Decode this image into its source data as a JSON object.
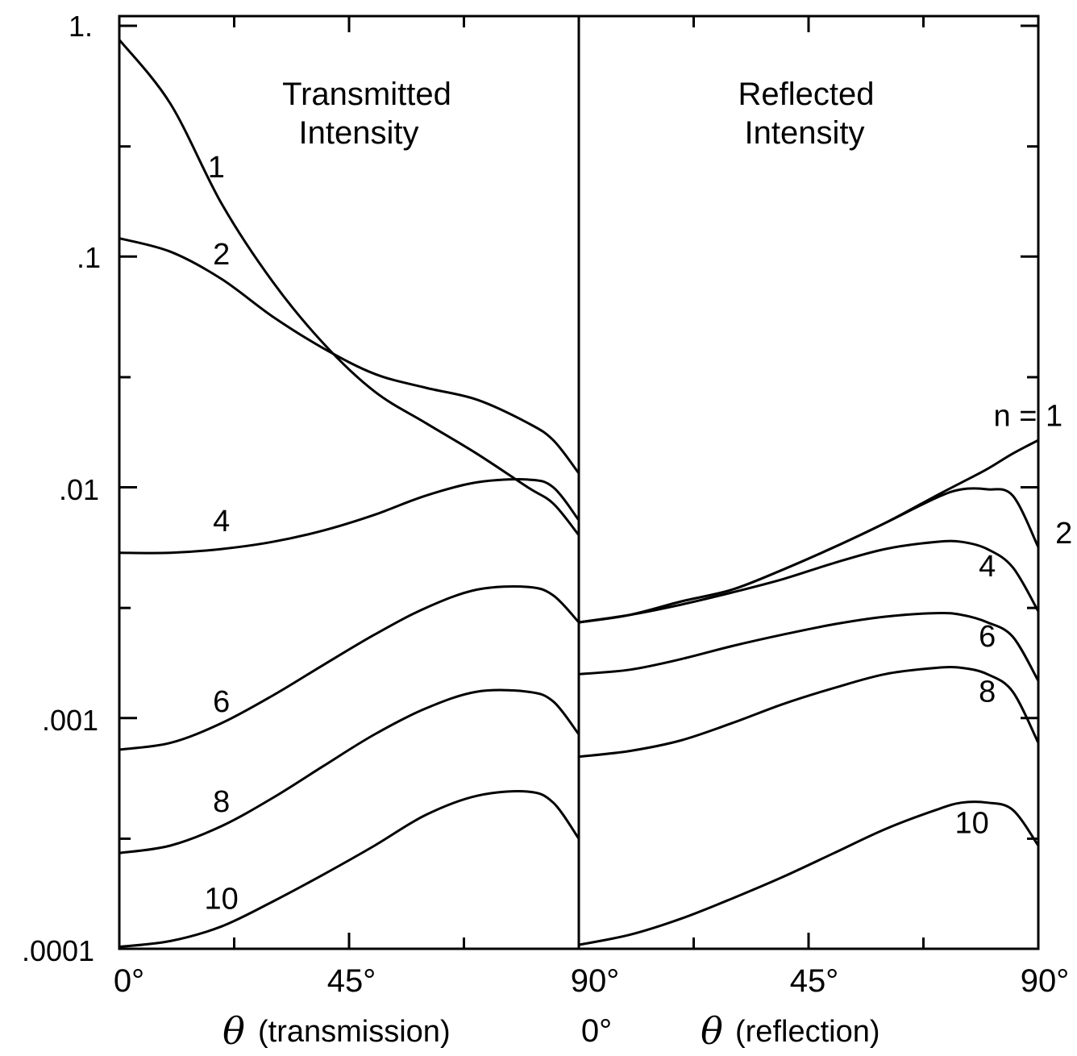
{
  "chart_data": [
    {
      "type": "line",
      "panel": "transmission",
      "title_lines": [
        "Transmitted",
        "Intensity"
      ],
      "xlabel_symbol": "θ",
      "xlabel": "(transmission)",
      "x_ticks": [
        "0°",
        "45°",
        "90°"
      ],
      "xlim": [
        0,
        90
      ],
      "y_scale": "log",
      "ylim": [
        0.0001,
        1.2
      ],
      "y_ticks": [
        "1.",
        ".1",
        ".01",
        ".001",
        ".0001"
      ],
      "x": [
        0,
        10,
        20,
        30,
        40,
        50,
        60,
        70,
        80,
        85,
        90
      ],
      "series": [
        {
          "name": "1",
          "values": [
            0.87,
            0.46,
            0.17,
            0.078,
            0.042,
            0.026,
            0.019,
            0.014,
            0.01,
            0.0085,
            0.0062
          ]
        },
        {
          "name": "2",
          "values": [
            0.12,
            0.105,
            0.08,
            0.055,
            0.04,
            0.031,
            0.027,
            0.024,
            0.019,
            0.016,
            0.0115
          ]
        },
        {
          "name": "4",
          "values": [
            0.0052,
            0.0052,
            0.0054,
            0.0058,
            0.0065,
            0.0076,
            0.0092,
            0.0105,
            0.0108,
            0.01,
            0.0072
          ]
        },
        {
          "name": "6",
          "values": [
            0.00073,
            0.00078,
            0.00095,
            0.00125,
            0.0017,
            0.0023,
            0.003,
            0.0036,
            0.0037,
            0.0034,
            0.0026
          ]
        },
        {
          "name": "8",
          "values": [
            0.00026,
            0.00028,
            0.00034,
            0.00045,
            0.00062,
            0.00085,
            0.0011,
            0.0013,
            0.0013,
            0.00118,
            0.00085
          ]
        },
        {
          "name": "10",
          "values": [
            0.000102,
            0.000108,
            0.000125,
            0.00016,
            0.00021,
            0.00028,
            0.00038,
            0.00046,
            0.00048,
            0.00043,
            0.0003
          ]
        }
      ],
      "curve_labels": [
        "1",
        "2",
        "4",
        "6",
        "8",
        "10"
      ]
    },
    {
      "type": "line",
      "panel": "reflection",
      "title_lines": [
        "Reflected",
        "Intensity"
      ],
      "xlabel_symbol": "θ",
      "xlabel": "(reflection)",
      "x_ticks": [
        "0°",
        "45°",
        "90°"
      ],
      "x_ticks_below_boundary": "0°",
      "xlim": [
        0,
        90
      ],
      "y_scale": "log",
      "ylim": [
        0.0001,
        1.2
      ],
      "x": [
        0,
        10,
        20,
        30,
        40,
        50,
        60,
        70,
        75,
        80,
        85,
        90
      ],
      "series": [
        {
          "name": "n = 1",
          "values": [
            0.0026,
            0.0028,
            0.0032,
            0.0036,
            0.0044,
            0.0055,
            0.007,
            0.0092,
            0.0105,
            0.012,
            0.014,
            0.016
          ]
        },
        {
          "name": "2",
          "values": [
            0.0026,
            0.0028,
            0.0032,
            0.0036,
            0.0044,
            0.0055,
            0.007,
            0.009,
            0.0098,
            0.0098,
            0.0092,
            0.0055
          ]
        },
        {
          "name": "4",
          "values": [
            0.0026,
            0.0028,
            0.0031,
            0.0035,
            0.004,
            0.0047,
            0.0054,
            0.0058,
            0.0058,
            0.0054,
            0.0045,
            0.0029
          ]
        },
        {
          "name": "6",
          "values": [
            0.00155,
            0.00162,
            0.0018,
            0.00205,
            0.0023,
            0.00255,
            0.00275,
            0.00285,
            0.0028,
            0.0026,
            0.00225,
            0.00145
          ]
        },
        {
          "name": "8",
          "values": [
            0.00068,
            0.00072,
            0.0008,
            0.00095,
            0.00115,
            0.00135,
            0.00155,
            0.00165,
            0.00165,
            0.00155,
            0.0013,
            0.00078
          ]
        },
        {
          "name": "10",
          "values": [
            0.000104,
            0.000115,
            0.000135,
            0.000165,
            0.000205,
            0.00026,
            0.00033,
            0.0004,
            0.00043,
            0.00043,
            0.0004,
            0.00028
          ]
        }
      ],
      "curve_labels": [
        "n = 1",
        "2",
        "4",
        "6",
        "8",
        "10"
      ]
    }
  ]
}
